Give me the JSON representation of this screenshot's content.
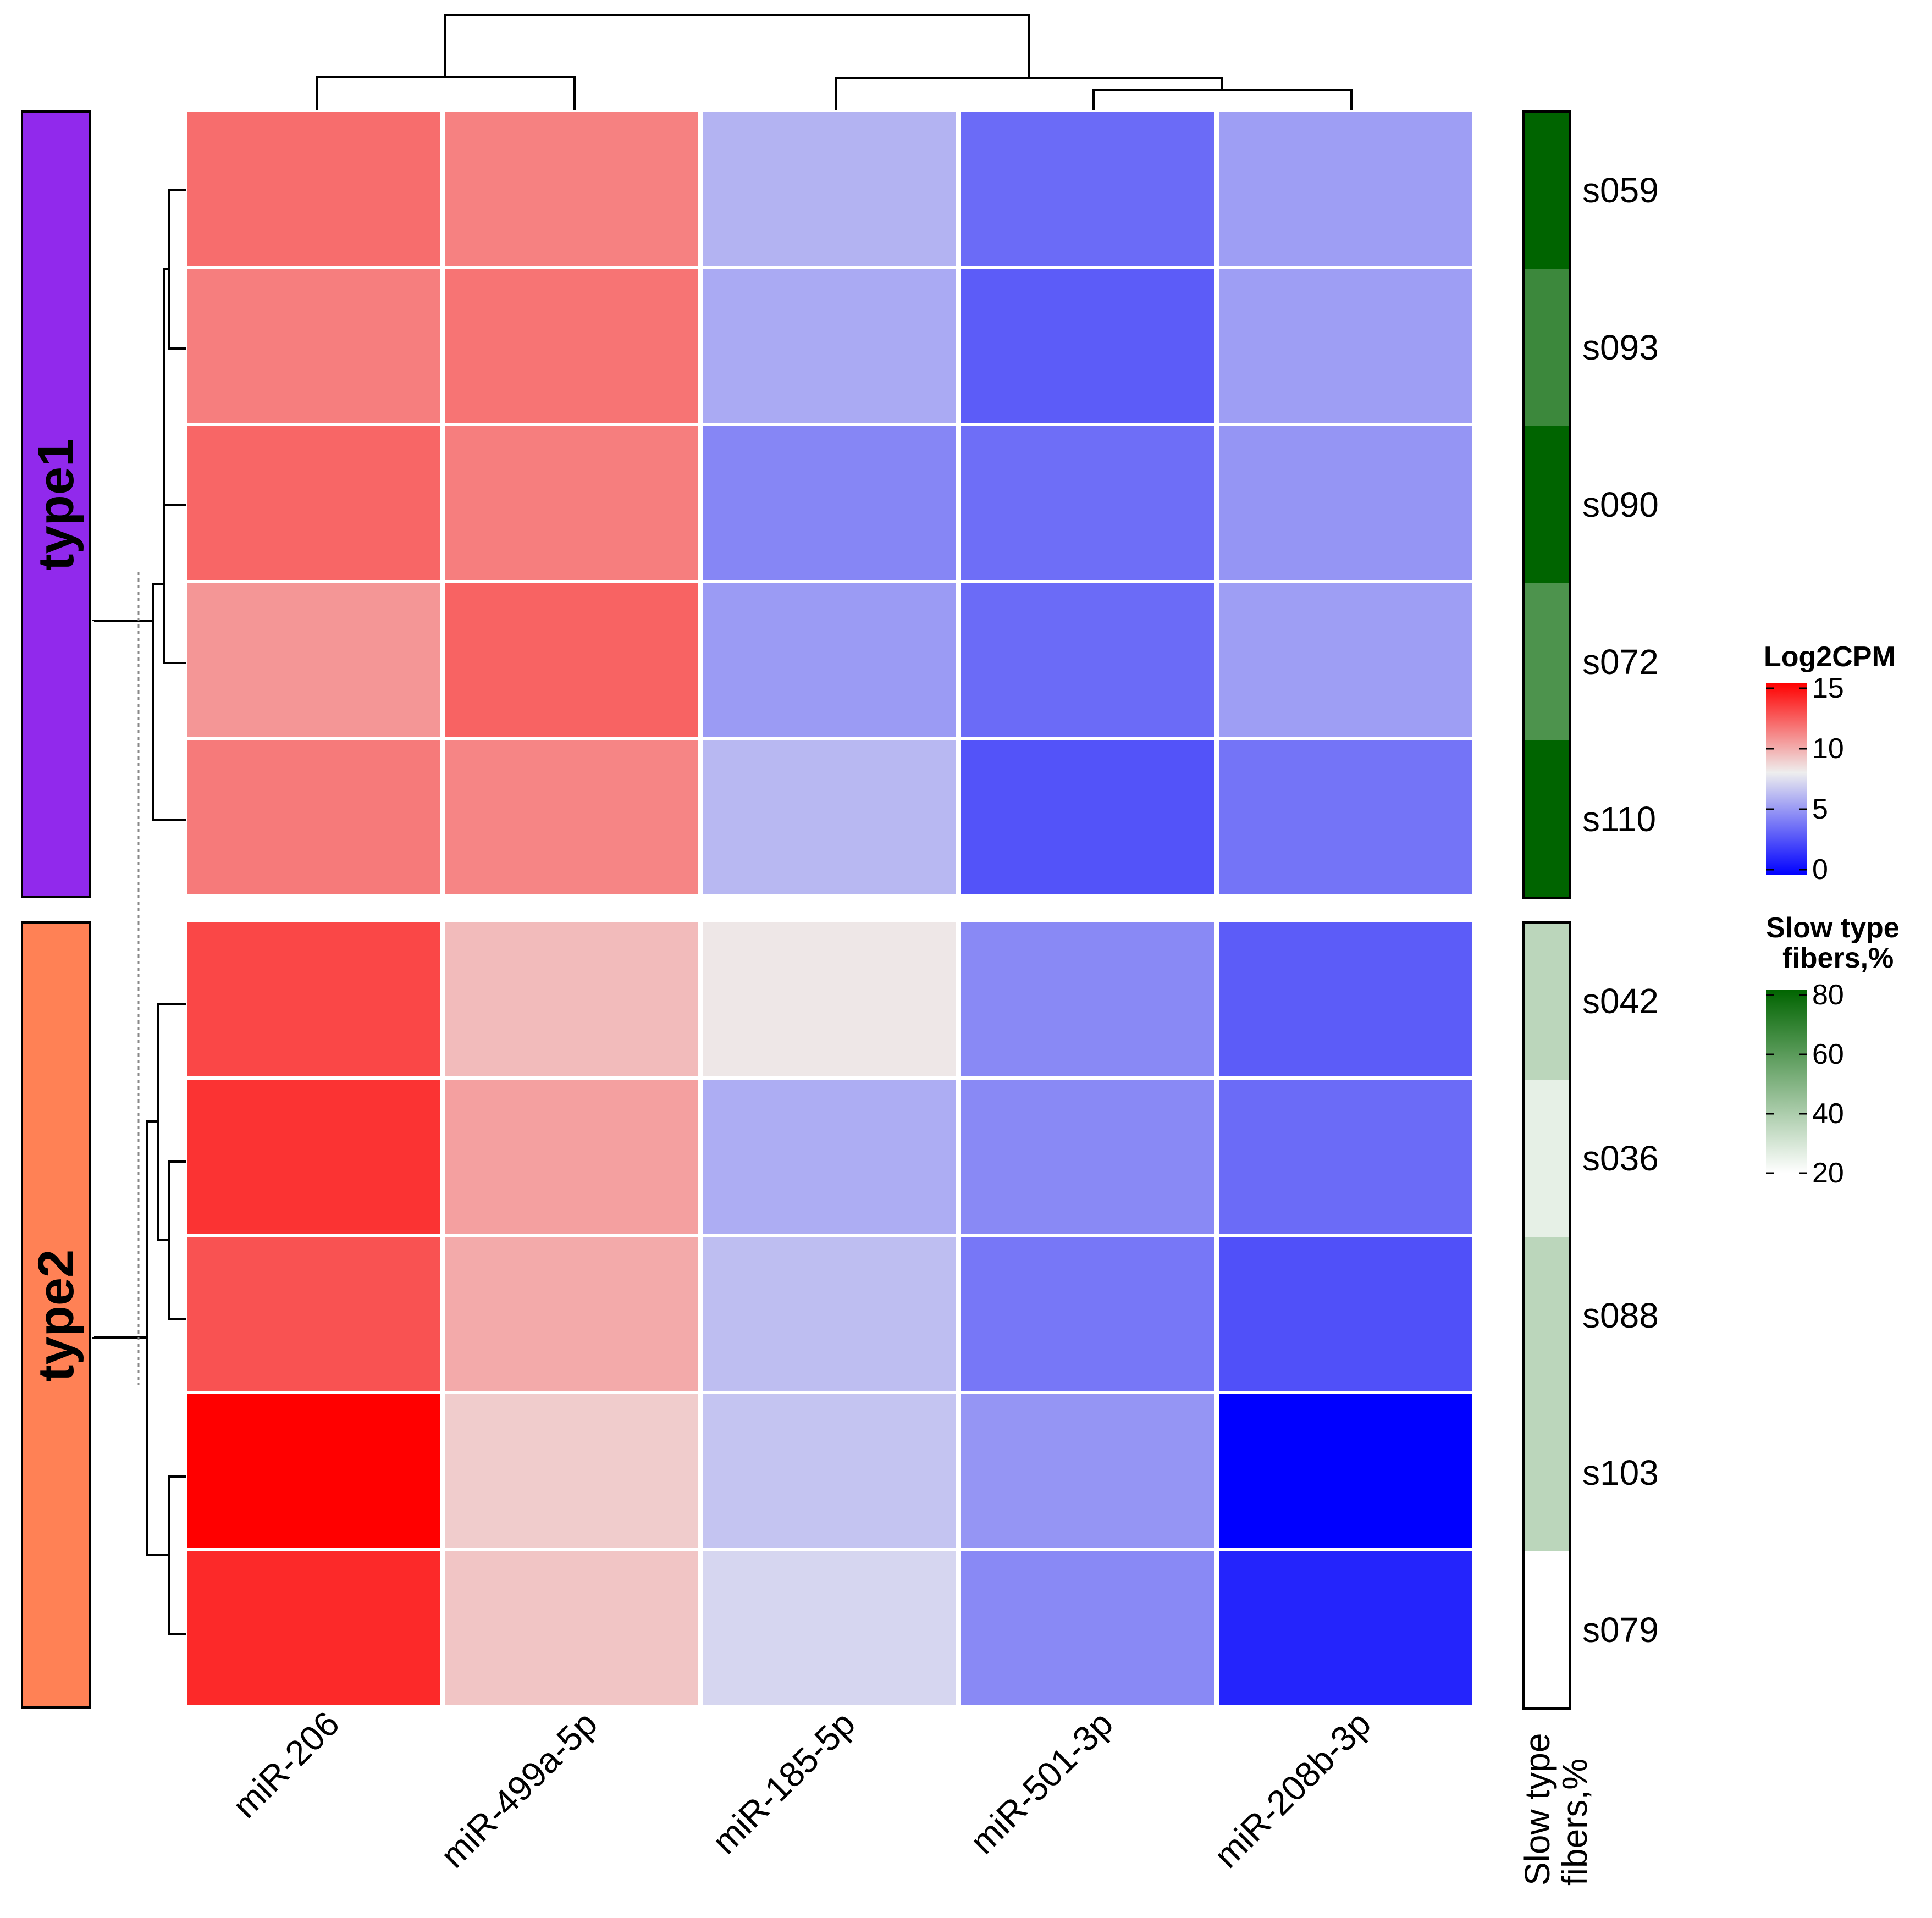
{
  "chart_data": {
    "type": "heatmap",
    "title": "",
    "columns": [
      "miR-206",
      "miR-499a-5p",
      "miR-185-5p",
      "miR-501-3p",
      "miR-208b-3p"
    ],
    "column_dendrogram": "((miR-206, miR-499a-5p), (miR-185-5p, (miR-501-3p, miR-208b-3p)))",
    "groups": [
      {
        "name": "type1",
        "color": "#9129EC",
        "rows": [
          {
            "label": "s059",
            "values": [
              11.8,
              11.2,
              6.0,
              3.6,
              5.3
            ],
            "slow_fibers": 80
          },
          {
            "label": "s093",
            "values": [
              11.3,
              11.6,
              5.7,
              3.1,
              5.3
            ],
            "slow_fibers": 66
          },
          {
            "label": "s090",
            "values": [
              12.0,
              11.3,
              4.5,
              3.7,
              5.0
            ],
            "slow_fibers": 80
          },
          {
            "label": "s072",
            "values": [
              10.6,
              12.1,
              5.2,
              3.6,
              5.3
            ],
            "slow_fibers": 62
          },
          {
            "label": "s110",
            "values": [
              11.4,
              11.1,
              6.2,
              2.8,
              3.9
            ],
            "slow_fibers": 80
          }
        ]
      },
      {
        "name": "type2",
        "color": "#FF8155",
        "rows": [
          {
            "label": "s042",
            "values": [
              12.9,
              9.5,
              8.2,
              4.6,
              3.1
            ],
            "slow_fibers": 36
          },
          {
            "label": "s036",
            "values": [
              13.5,
              10.3,
              5.8,
              4.6,
              3.6
            ],
            "slow_fibers": 26
          },
          {
            "label": "s088",
            "values": [
              12.6,
              10.0,
              6.4,
              4.0,
              2.7
            ],
            "slow_fibers": 36
          },
          {
            "label": "s103",
            "values": [
              15.0,
              9.0,
              6.6,
              5.0,
              0.0
            ],
            "slow_fibers": 36
          },
          {
            "label": "s079",
            "values": [
              13.8,
              9.2,
              7.2,
              4.6,
              1.2
            ],
            "slow_fibers": 20
          }
        ]
      }
    ],
    "annotation_column_label": [
      "Slow type",
      "fibers,%"
    ],
    "color_scale": {
      "title": "Log2CPM",
      "min": 0,
      "mid": 8,
      "max": 15,
      "low_color": "#0000FF",
      "mid_color": "#EEEEEE",
      "high_color": "#FF0000",
      "ticks": [
        "15",
        "10",
        "5",
        "0"
      ],
      "tick_values": [
        15,
        10,
        5,
        0
      ]
    },
    "annotation_scale": {
      "title": [
        "Slow type",
        "fibers,%"
      ],
      "min": 20,
      "max": 80,
      "low_color": "#FFFFFF",
      "high_color": "#006400",
      "ticks": [
        "80",
        "60",
        "40",
        "20"
      ],
      "tick_values": [
        80,
        60,
        40,
        20
      ]
    }
  }
}
